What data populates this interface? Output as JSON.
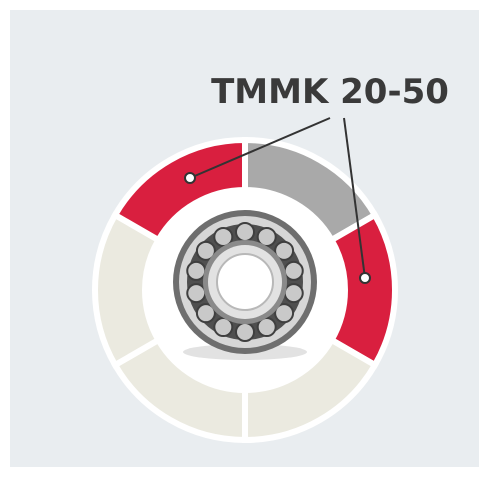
{
  "label": "TMMK 20-50"
}
